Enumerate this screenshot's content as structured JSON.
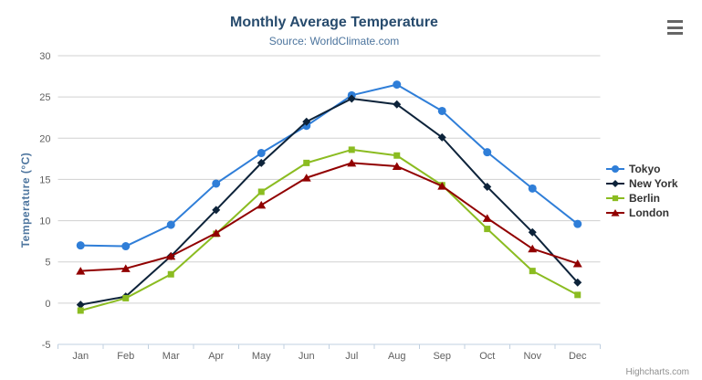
{
  "chart_data": {
    "type": "line",
    "title": "Monthly Average Temperature",
    "subtitle": "Source: WorldClimate.com",
    "xlabel": "",
    "ylabel": "Temperature (°C)",
    "categories": [
      "Jan",
      "Feb",
      "Mar",
      "Apr",
      "May",
      "Jun",
      "Jul",
      "Aug",
      "Sep",
      "Oct",
      "Nov",
      "Dec"
    ],
    "yticks": [
      30,
      25,
      20,
      15,
      10,
      5,
      0,
      -5
    ],
    "ylim": [
      -5,
      30
    ],
    "grid": true,
    "legend_position": "right",
    "series": [
      {
        "name": "Tokyo",
        "color": "#2f7ed8",
        "marker": "circle",
        "values": [
          7.0,
          6.9,
          9.5,
          14.5,
          18.2,
          21.5,
          25.2,
          26.5,
          23.3,
          18.3,
          13.9,
          9.6
        ]
      },
      {
        "name": "New York",
        "color": "#0d233a",
        "marker": "diamond",
        "values": [
          -0.2,
          0.8,
          5.7,
          11.3,
          17.0,
          22.0,
          24.8,
          24.1,
          20.1,
          14.1,
          8.6,
          2.5
        ]
      },
      {
        "name": "Berlin",
        "color": "#8bbc21",
        "marker": "square",
        "values": [
          -0.9,
          0.6,
          3.5,
          8.4,
          13.5,
          17.0,
          18.6,
          17.9,
          14.3,
          9.0,
          3.9,
          1.0
        ]
      },
      {
        "name": "London",
        "color": "#910000",
        "marker": "triangle",
        "values": [
          3.9,
          4.2,
          5.7,
          8.5,
          11.9,
          15.2,
          17.0,
          16.6,
          14.2,
          10.3,
          6.6,
          4.8
        ]
      }
    ]
  },
  "colors": {
    "title": "#274b6d",
    "subtitle": "#4d759e",
    "gridline": "#d0d0d0",
    "axis_line": "#c0d0e0",
    "axis_label": "#606060",
    "y_axis_title": "#4d759e",
    "legend_text": "#333333",
    "credit_text": "#909090",
    "context_button": "#666666"
  },
  "context_button": {
    "icon": "hamburger-menu-icon"
  },
  "credits": {
    "label": "Highcharts.com"
  }
}
